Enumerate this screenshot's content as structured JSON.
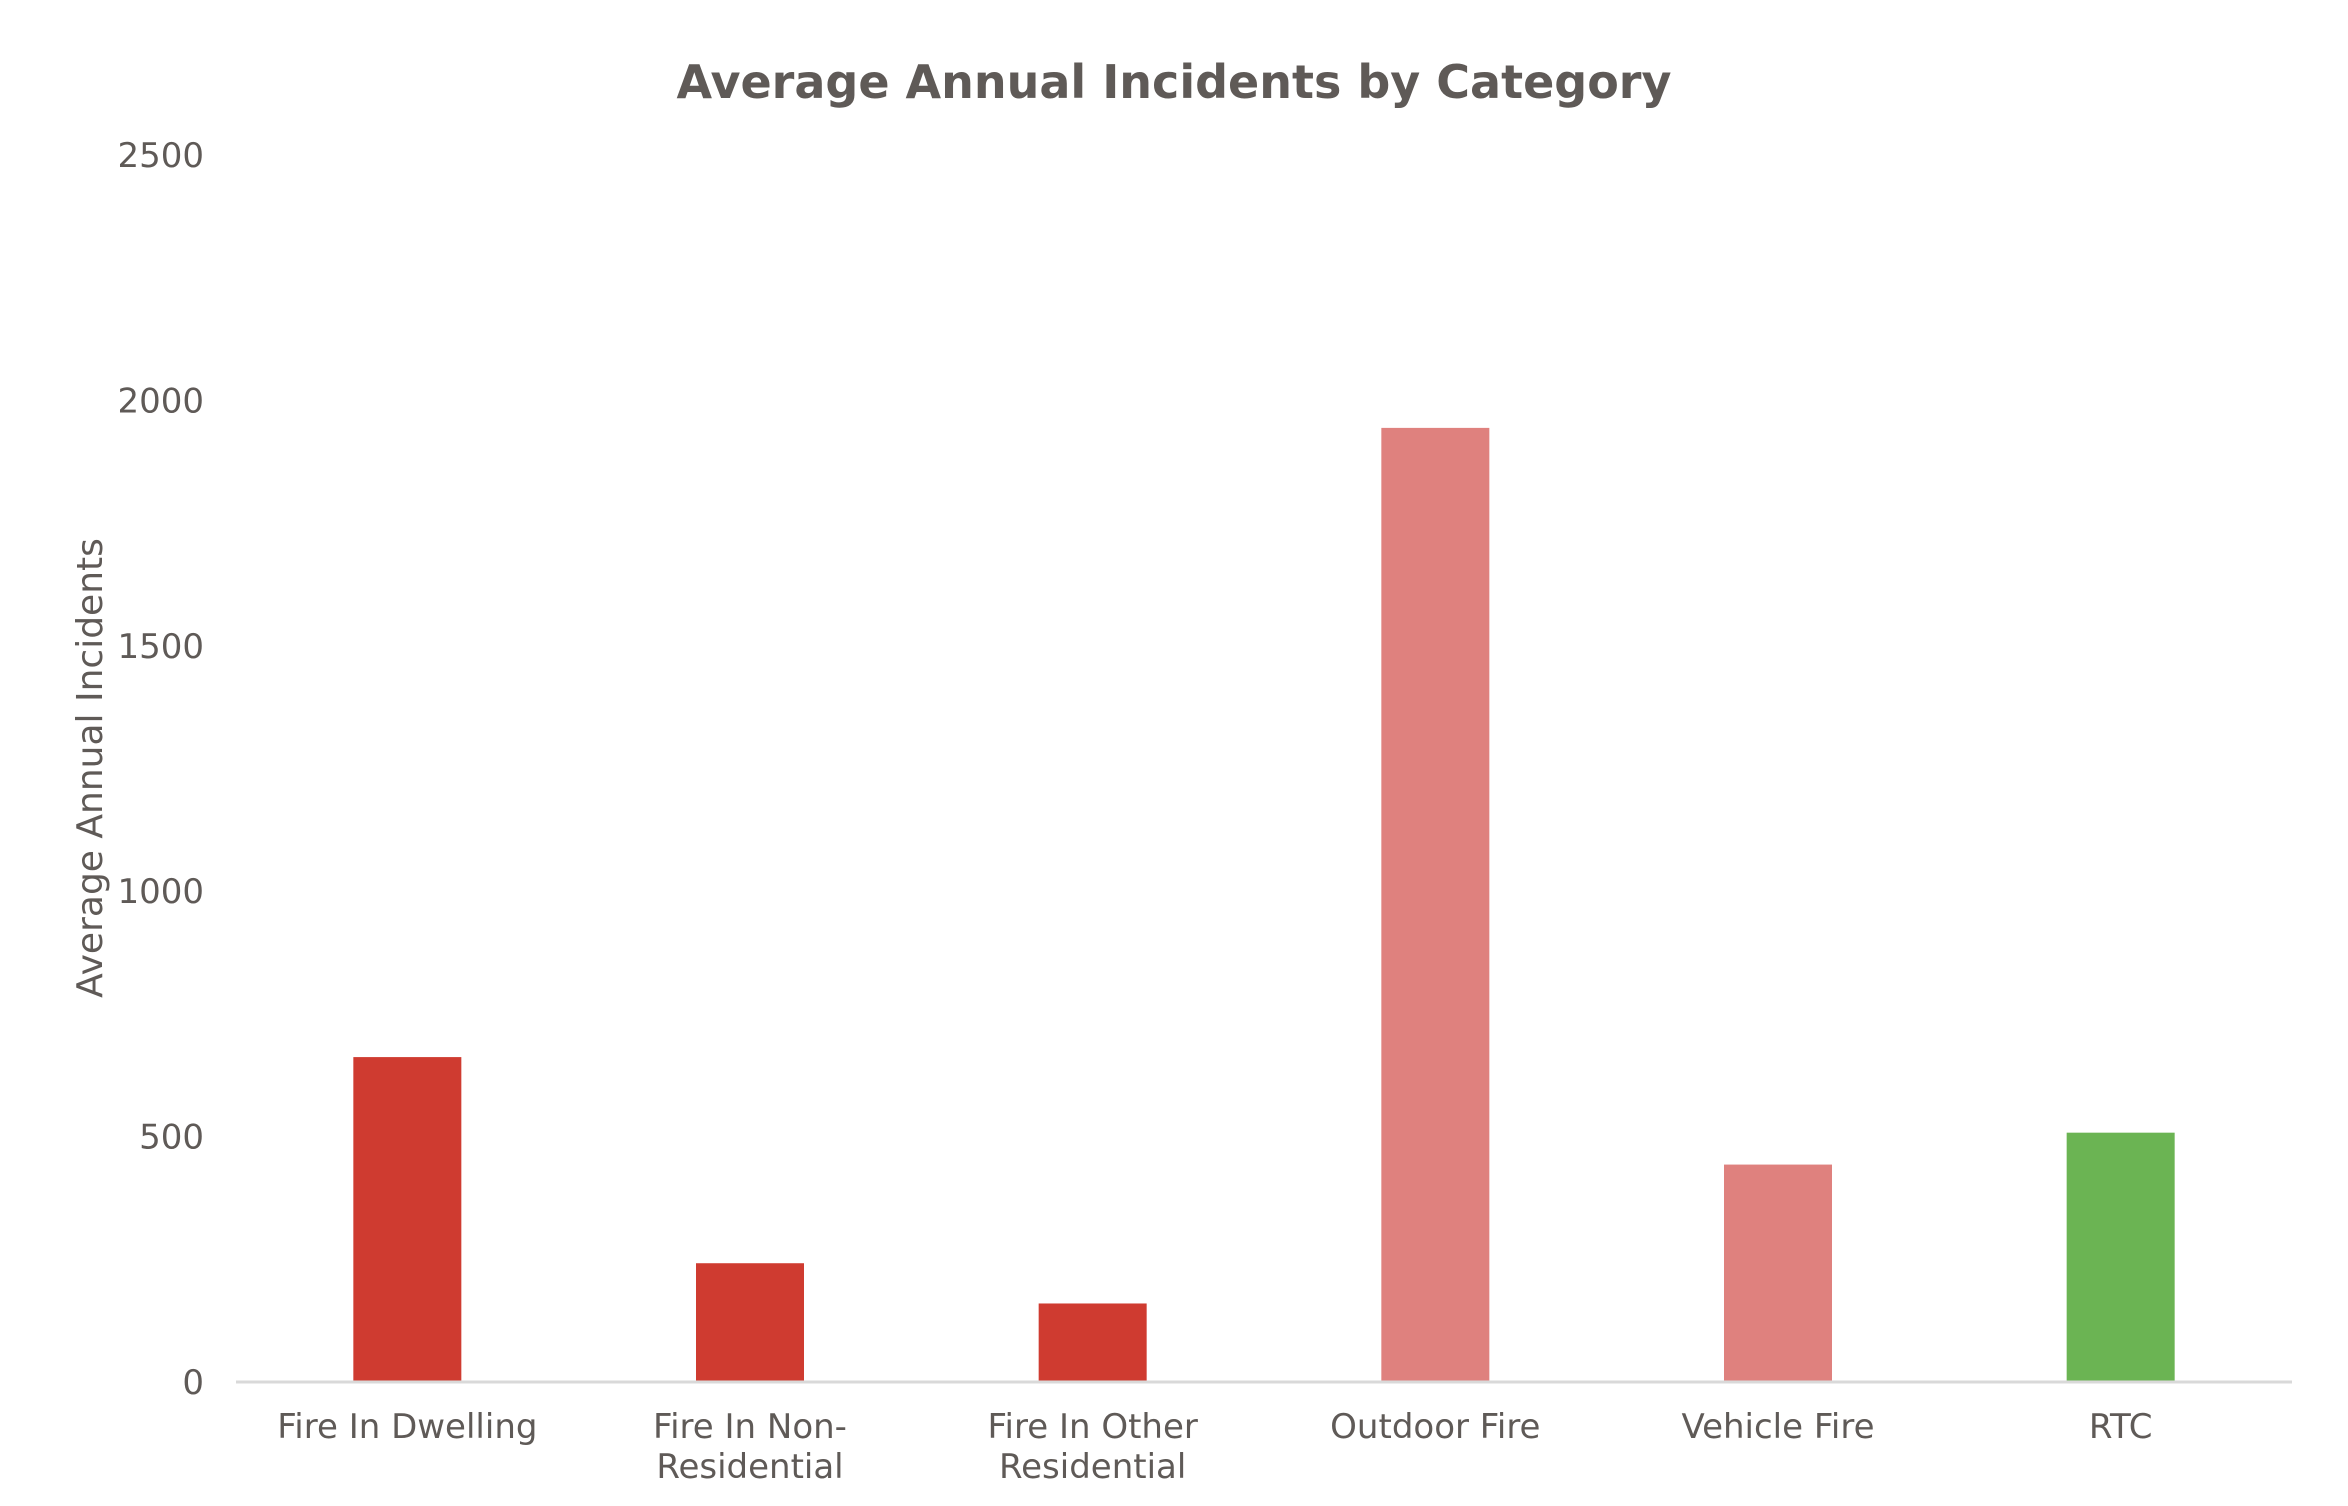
{
  "chart_data": {
    "type": "bar",
    "title": "Average Annual Incidents by Category",
    "xlabel": "",
    "ylabel": "Average Annual Incidents",
    "ylim": [
      0,
      2500
    ],
    "yticks": [
      "0",
      "500",
      "1000",
      "1500",
      "2000",
      "2500"
    ],
    "ytick_values": [
      0,
      500,
      1000,
      1500,
      2000,
      2500
    ],
    "grid": false,
    "legend": "none",
    "categories": [
      [
        "Fire In Dwelling"
      ],
      [
        "Fire In Non-",
        "Residential"
      ],
      [
        "Fire In Other",
        "Residential"
      ],
      [
        "Outdoor Fire"
      ],
      [
        "Vehicle Fire"
      ],
      [
        "RTC"
      ]
    ],
    "values": [
      662,
      242,
      160,
      1944,
      443,
      508
    ],
    "colors": [
      "#cf3b30",
      "#cf3b30",
      "#cf3b30",
      "#df817e",
      "#df817e",
      "#6bb453"
    ]
  }
}
